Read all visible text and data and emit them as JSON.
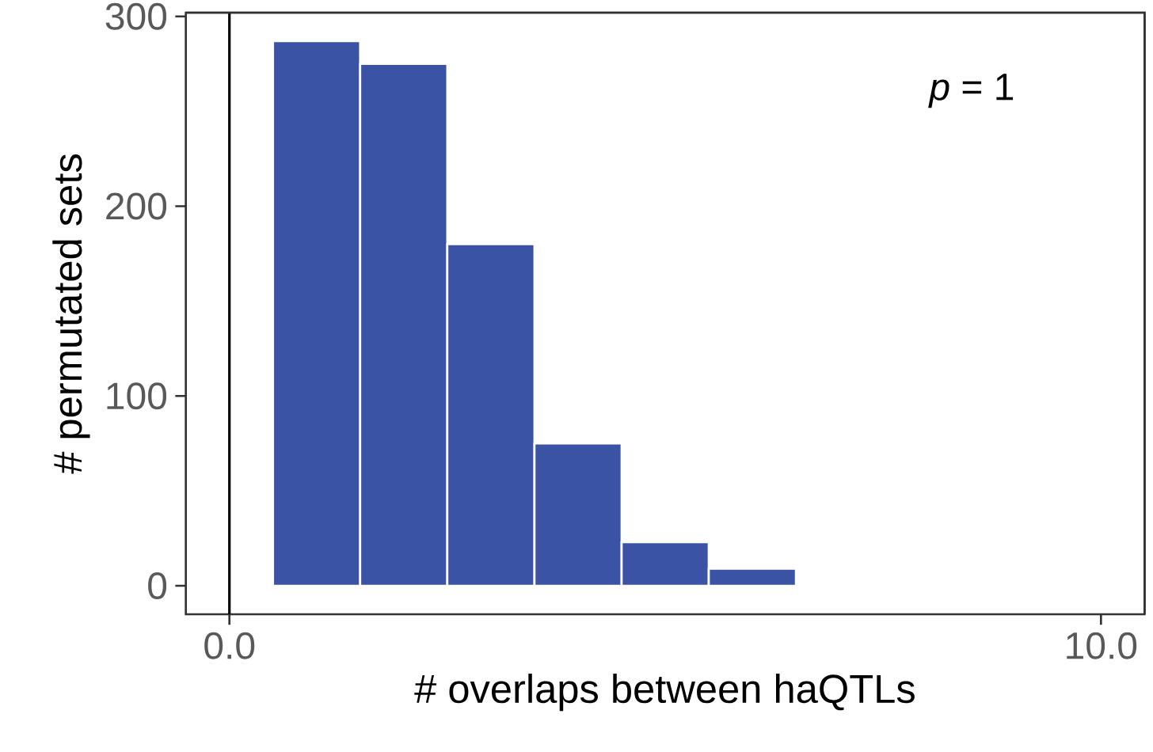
{
  "chart_data": {
    "type": "histogram",
    "xlabel": "# overlaps between haQTLs",
    "ylabel": "# permutated sets",
    "bins": [
      0.5,
      1.5,
      2.5,
      3.5,
      4.5,
      5.5,
      6.5,
      7.5,
      8.5,
      9.5
    ],
    "values": [
      287,
      275,
      180,
      75,
      23,
      9,
      0,
      0,
      0
    ],
    "color": "#3a53a4",
    "xlim": [
      -0.5,
      10.5
    ],
    "ylim": [
      -15,
      302
    ],
    "xticks": [
      {
        "value": 0,
        "label": "0.0"
      },
      {
        "value": 10,
        "label": "10.0"
      }
    ],
    "yticks": [
      0,
      100,
      200,
      300
    ],
    "grid": false,
    "ref_lines": [
      {
        "axis": "x",
        "value": 0,
        "color": "#000000"
      }
    ],
    "annotations": [
      "*p* = 1"
    ]
  }
}
